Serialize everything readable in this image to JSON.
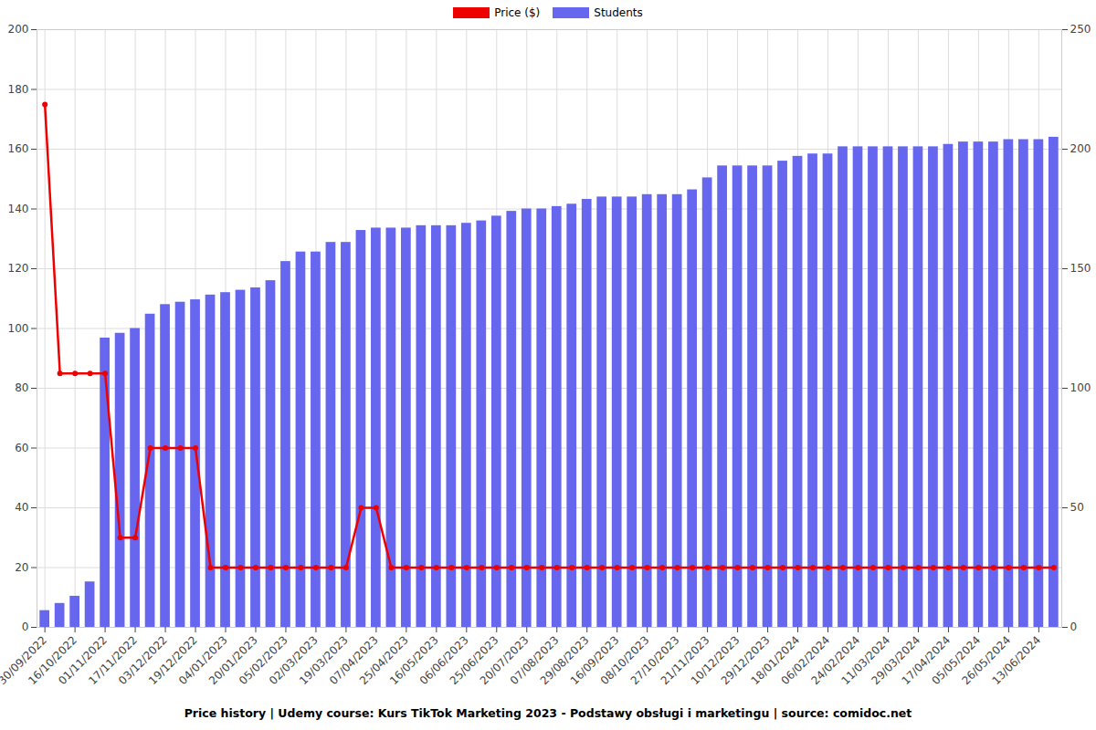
{
  "chart_data": {
    "type": "bar",
    "title": "Price history | Udemy course: Kurs TikTok Marketing 2023 - Podstawy obsługi i marketingu | source: comidoc.net",
    "categories": [
      "30/09/2022",
      null,
      "16/10/2022",
      null,
      "01/11/2022",
      null,
      "17/11/2022",
      null,
      "03/12/2022",
      null,
      "19/12/2022",
      null,
      "04/01/2023",
      null,
      "20/01/2023",
      null,
      "05/02/2023",
      null,
      "02/03/2023",
      null,
      "19/03/2023",
      null,
      "07/04/2023",
      null,
      "25/04/2023",
      null,
      "16/05/2023",
      null,
      "06/06/2023",
      null,
      "25/06/2023",
      null,
      "20/07/2023",
      null,
      "07/08/2023",
      null,
      "29/08/2023",
      null,
      "16/09/2023",
      null,
      "08/10/2023",
      null,
      "27/10/2023",
      null,
      "21/11/2023",
      null,
      "10/12/2023",
      null,
      "29/12/2023",
      null,
      "18/01/2024",
      null,
      "06/02/2024",
      null,
      "24/02/2024",
      null,
      "11/03/2024",
      null,
      "29/03/2024",
      null,
      "17/04/2024",
      null,
      "05/05/2024",
      null,
      "26/05/2024",
      null,
      "13/06/2024",
      null
    ],
    "series": [
      {
        "name": "Price ($)",
        "type": "line",
        "color": "#ee0000",
        "marker": "circle",
        "values": [
          175,
          85,
          85,
          85,
          85,
          30,
          30,
          60,
          60,
          60,
          60,
          20,
          20,
          20,
          20,
          20,
          20,
          20,
          20,
          20,
          20,
          40,
          40,
          20,
          20,
          20,
          20,
          20,
          20,
          20,
          20,
          20,
          20,
          20,
          20,
          20,
          20,
          20,
          20,
          20,
          20,
          20,
          20,
          20,
          20,
          20,
          20,
          20,
          20,
          20,
          20,
          20,
          20,
          20,
          20,
          20,
          20,
          20,
          20,
          20,
          20,
          20,
          20,
          20,
          20,
          20,
          20,
          20
        ]
      },
      {
        "name": "Students",
        "type": "bar",
        "color": "#6666ee",
        "axis": "y2",
        "values": [
          7,
          10,
          13,
          19,
          121,
          123,
          125,
          131,
          135,
          136,
          137,
          139,
          140,
          141,
          142,
          145,
          153,
          157,
          157,
          161,
          161,
          166,
          167,
          167,
          167,
          168,
          168,
          168,
          169,
          170,
          172,
          174,
          175,
          175,
          176,
          177,
          179,
          180,
          180,
          180,
          181,
          181,
          181,
          183,
          188,
          193,
          193,
          193,
          193,
          195,
          197,
          198,
          198,
          201,
          201,
          201,
          201,
          201,
          201,
          201,
          202,
          203,
          203,
          203,
          204,
          204,
          204,
          205
        ]
      }
    ],
    "ylim": [
      0,
      200
    ],
    "yticks": [
      0,
      20,
      40,
      60,
      80,
      100,
      120,
      140,
      160,
      180,
      200
    ],
    "y2lim": [
      0,
      250
    ],
    "y2ticks": [
      0,
      50,
      100,
      150,
      200,
      250
    ],
    "grid": true,
    "legend": "top"
  }
}
